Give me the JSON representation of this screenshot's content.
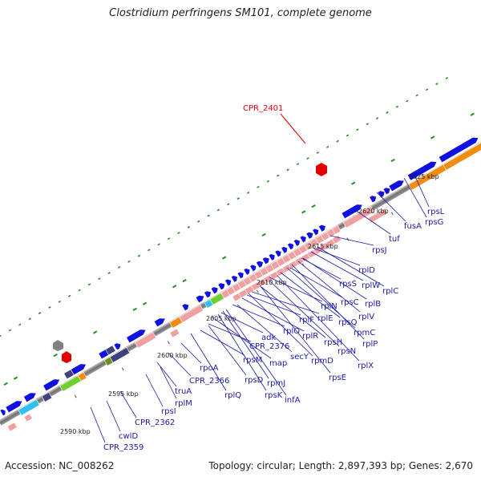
{
  "title": "Clostridium perfringens SM101, complete genome",
  "footer": {
    "accession": "Accession: NC_008262",
    "summary": "Topology: circular; Length: 2,897,393 bp; Genes: 2,670"
  },
  "scale": [
    "2590 kbp",
    "2595 kbp",
    "2600 kbp",
    "2605 kbp",
    "2610 kbp",
    "2615 kbp",
    "2620 kbp",
    "2625 kbp"
  ],
  "highlight": "CPR_2401",
  "genes": [
    "CPR_2359",
    "cwlD",
    "CPR_2362",
    "rpsI",
    "rplM",
    "truA",
    "CPR_2366",
    "rplQ",
    "rpoA",
    "rpsD",
    "rpsK",
    "infA",
    "rpsM",
    "rpmJ",
    "map",
    "CPR_2376",
    "adk",
    "secY",
    "rplO",
    "rpmD",
    "rplR",
    "rpsE",
    "rplF",
    "rplE",
    "rpsH",
    "rpsN",
    "rplX",
    "rplN",
    "rpsQ",
    "rpmC",
    "rplP",
    "rpsC",
    "rplV",
    "rplB",
    "rpsS",
    "rplW",
    "rplC",
    "rplD",
    "rpsJ",
    "tuf",
    "fusA",
    "rpsG",
    "rpsL"
  ],
  "colors": {
    "label": "#1a1aa8",
    "forward_gene": "#1010e0",
    "rna": "#f0a0a0",
    "orange": "#f08c10",
    "cyan": "#30c0f0",
    "green": "#70d030",
    "olive": "#6b8e23",
    "purple": "#404080",
    "gray": "#808080",
    "red": "#e00000",
    "dots": "#2a8a2a"
  }
}
